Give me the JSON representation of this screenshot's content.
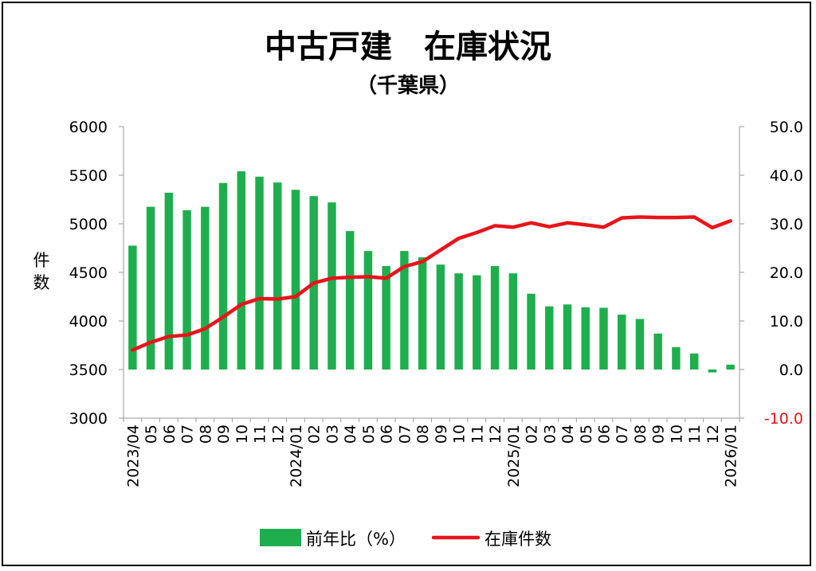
{
  "chart_data": {
    "type": "bar",
    "title": "中古戸建　在庫状況",
    "subtitle": "（千葉県）",
    "ylabel": "件数",
    "y_left_lim": [
      3000,
      6000
    ],
    "y_left_ticks": [
      "3000",
      "3500",
      "4000",
      "4500",
      "5000",
      "5500",
      "6000"
    ],
    "y_right_lim": [
      -10,
      50
    ],
    "y_right_ticks": [
      "-10.0",
      "0.0",
      "10.0",
      "20.0",
      "30.0",
      "40.0",
      "50.0"
    ],
    "categories": [
      "2023/04",
      "05",
      "06",
      "07",
      "08",
      "09",
      "10",
      "11",
      "12",
      "2024/01",
      "02",
      "03",
      "04",
      "05",
      "06",
      "07",
      "08",
      "09",
      "10",
      "11",
      "12",
      "2025/01",
      "02",
      "03",
      "04",
      "05",
      "06",
      "07",
      "08",
      "09",
      "10",
      "11",
      "12",
      "2026/01"
    ],
    "series": [
      {
        "name": "前年比（%）",
        "type": "bar",
        "axis": "right",
        "color": "#1fae4e",
        "values": [
          25.5,
          33.5,
          36.4,
          32.8,
          33.5,
          38.4,
          40.8,
          39.7,
          38.5,
          37.0,
          35.7,
          34.4,
          28.5,
          24.4,
          21.3,
          24.4,
          23.1,
          21.6,
          19.8,
          19.4,
          21.3,
          19.8,
          15.6,
          13.0,
          13.4,
          12.8,
          12.7,
          11.3,
          10.4,
          7.4,
          4.6,
          3.3,
          -0.6,
          1.0
        ]
      },
      {
        "name": "在庫件数",
        "type": "line",
        "axis": "left",
        "color": "#e8141b",
        "values": [
          3700,
          3780,
          3840,
          3855,
          3920,
          4040,
          4170,
          4230,
          4225,
          4250,
          4390,
          4440,
          4450,
          4455,
          4440,
          4560,
          4610,
          4730,
          4850,
          4910,
          4980,
          4965,
          5010,
          4970,
          5010,
          4990,
          4965,
          5060,
          5070,
          5065,
          5065,
          5070,
          4960,
          5030
        ]
      }
    ],
    "legend_position": "bottom",
    "grid": false
  }
}
